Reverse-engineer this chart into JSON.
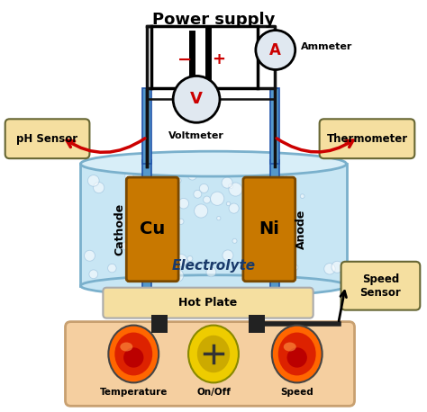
{
  "bg_color": "#ffffff",
  "beaker_fill": "#c8e6f4",
  "beaker_edge": "#7ab0cc",
  "electrode_fill": "#c87800",
  "electrode_edge": "#7a4800",
  "rod_fill": "#5599cc",
  "rod_edge": "#2255aa",
  "hotplate_fill": "#f5cfa0",
  "hotplate_edge": "#c8a070",
  "sensor_box_fill": "#f5dfa0",
  "sensor_box_edge": "#888844",
  "wire_color": "#111111",
  "red_color": "#cc0000",
  "ammeter_fill": "#e0e8f0",
  "voltmeter_fill": "#e0e8f0",
  "knob_red_outer": "#ff4400",
  "knob_red_mid": "#cc2200",
  "knob_red_inner": "#660000",
  "knob_yellow": "#ddbb00",
  "power_supply_fill": "#ffffff",
  "title": "Power supply",
  "electrode_label_left": "Cu",
  "electrode_label_right": "Ni",
  "cathode_label": "Cathode",
  "anode_label": "Anode",
  "electrolyte_label": "Electrolyte",
  "hotplate_label": "Hot Plate",
  "ph_label": "pH Sensor",
  "thermo_label": "Thermometer",
  "speed_label": "Speed\nSensor",
  "ammeter_label": "Ammeter",
  "voltmeter_label": "Voltmeter",
  "knob_labels": [
    "Temperature",
    "On/Off",
    "Speed"
  ]
}
